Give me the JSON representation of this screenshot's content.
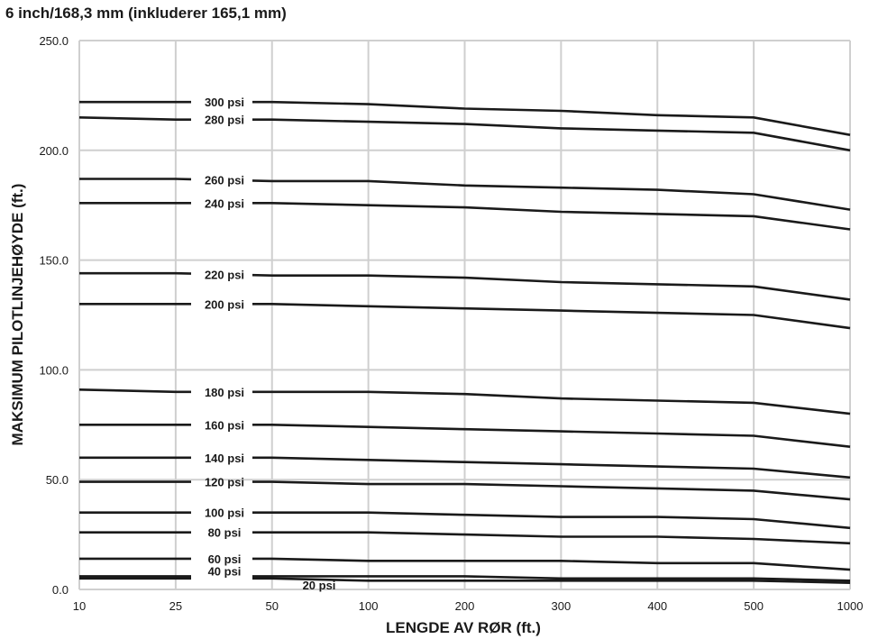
{
  "chart_data": {
    "type": "line",
    "title": "6 inch/168,3 mm (inkluderer 165,1 mm)",
    "xlabel": "LENGDE AV RØR (ft.)",
    "ylabel": "MAKSIMUM PILOTLINJEHØYDE (ft.)",
    "ylim": [
      0,
      250
    ],
    "yticks": [
      "0.0",
      "50.0",
      "100.0",
      "150.0",
      "200.0",
      "250.0"
    ],
    "categories": [
      "10",
      "25",
      "50",
      "100",
      "200",
      "300",
      "400",
      "500",
      "1000"
    ],
    "grid": true,
    "line_color": "#1a1a1a",
    "grid_color": "#cfcfcf",
    "series": [
      {
        "name": "300 psi",
        "values": [
          222,
          222,
          222,
          221,
          219,
          218,
          216,
          215,
          207
        ]
      },
      {
        "name": "280 psi",
        "values": [
          215,
          214,
          214,
          213,
          212,
          210,
          209,
          208,
          200
        ]
      },
      {
        "name": "260 psi",
        "values": [
          187,
          187,
          186,
          186,
          184,
          183,
          182,
          180,
          173
        ]
      },
      {
        "name": "240 psi",
        "values": [
          176,
          176,
          176,
          175,
          174,
          172,
          171,
          170,
          164
        ]
      },
      {
        "name": "220 psi",
        "values": [
          144,
          144,
          143,
          143,
          142,
          140,
          139,
          138,
          132
        ]
      },
      {
        "name": "200 psi",
        "values": [
          130,
          130,
          130,
          129,
          128,
          127,
          126,
          125,
          119
        ]
      },
      {
        "name": "180 psi",
        "values": [
          91,
          90,
          90,
          90,
          89,
          87,
          86,
          85,
          80
        ]
      },
      {
        "name": "160 psi",
        "values": [
          75,
          75,
          75,
          74,
          73,
          72,
          71,
          70,
          65
        ]
      },
      {
        "name": "140 psi",
        "values": [
          60,
          60,
          60,
          59,
          58,
          57,
          56,
          55,
          51
        ]
      },
      {
        "name": "120 psi",
        "values": [
          49,
          49,
          49,
          48,
          48,
          47,
          46,
          45,
          41
        ]
      },
      {
        "name": "100 psi",
        "values": [
          35,
          35,
          35,
          35,
          34,
          33,
          33,
          32,
          28
        ]
      },
      {
        "name": "80 psi",
        "values": [
          26,
          26,
          26,
          26,
          25,
          24,
          24,
          23,
          21
        ]
      },
      {
        "name": "60 psi",
        "values": [
          14,
          14,
          14,
          13,
          13,
          13,
          12,
          12,
          9
        ]
      },
      {
        "name": "40 psi",
        "values": [
          6,
          6,
          6,
          6,
          6,
          5,
          5,
          5,
          4
        ]
      },
      {
        "name": "20 psi",
        "values": [
          5,
          5,
          5,
          4,
          4,
          4,
          4,
          4,
          3
        ]
      }
    ]
  }
}
